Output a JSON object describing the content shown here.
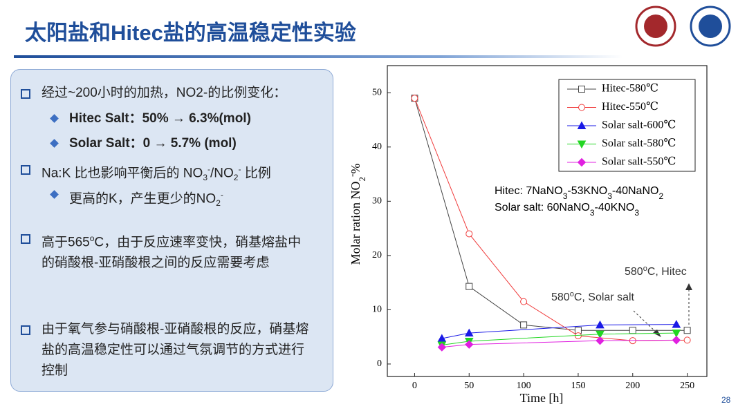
{
  "slide": {
    "title": "太阳盐和Hitec盐的高温稳定性实验",
    "page_number": "28",
    "bullets": [
      {
        "parts": [
          "经过~200小时的加热，NO2-的比例变化："
        ],
        "sub_bullets": [
          {
            "parts": [
              "Hitec Salt：50% → 6.3%(mol)"
            ]
          },
          {
            "parts": [
              "Solar Salt：0 → 5.7% (mol)"
            ]
          }
        ]
      },
      {
        "parts": [
          "Na:K 比也影响平衡后的 NO",
          "3",
          "-",
          "/NO",
          "2",
          "-",
          " 比例"
        ],
        "sub_bullets": [
          {
            "parts": [
              "更高的K，产生更少的NO",
              "2",
              "-"
            ]
          }
        ]
      },
      {
        "parts": [
          "高于565",
          "o",
          "C，由于反应速率变快，硝基熔盐中的硝酸根-亚硝酸根之间的反应需要考虑"
        ]
      },
      {
        "parts": [
          "由于氧气参与硝酸根-亚硝酸根的反应，硝基熔盐的高温稳定性可以通过气氛调节的方式进行控制"
        ]
      }
    ]
  },
  "chart_data": {
    "type": "line",
    "xlabel": "Time [h]",
    "ylabel_parts": [
      "Molar ration  NO",
      "2",
      "-",
      "%"
    ],
    "xlim": [
      -25,
      268
    ],
    "ylim": [
      -2.3,
      55
    ],
    "xticks": [
      0,
      50,
      100,
      150,
      200,
      250
    ],
    "yticks": [
      0,
      10,
      20,
      30,
      40,
      50
    ],
    "legend": "upper right",
    "series": [
      {
        "name": "Hitec-580℃",
        "color": "#444444",
        "marker": "square",
        "x": [
          0,
          50,
          100,
          150,
          200,
          250
        ],
        "values": [
          49,
          14.3,
          7.2,
          6.2,
          6.2,
          6.2
        ]
      },
      {
        "name": "Hitec-550℃",
        "color": "#f03c3c",
        "marker": "circle",
        "x": [
          0,
          50,
          100,
          150,
          200,
          250
        ],
        "values": [
          49,
          24,
          11.5,
          5.2,
          4.3,
          4.4
        ]
      },
      {
        "name": "Solar salt-600℃",
        "color": "#1a1ae6",
        "marker": "triangle",
        "x": [
          25,
          50,
          170,
          240
        ],
        "values": [
          4.7,
          5.7,
          7.2,
          7.3
        ]
      },
      {
        "name": "Solar salt-580℃",
        "color": "#22d622",
        "marker": "triangle-down",
        "x": [
          25,
          50,
          170,
          240
        ],
        "values": [
          3.5,
          4.2,
          5.5,
          5.7
        ]
      },
      {
        "name": "Solar salt-550℃",
        "color": "#e020e0",
        "marker": "diamond",
        "x": [
          25,
          50,
          170,
          240
        ],
        "values": [
          3.1,
          3.6,
          4.3,
          4.4
        ]
      }
    ],
    "annotations": [
      {
        "parts": [
          "Hitec: 7NaNO",
          "3",
          "-53KNO",
          "3",
          "-40NaNO",
          "2"
        ]
      },
      {
        "parts": [
          "Solar salt: 60NaNO",
          "3",
          "-40KNO",
          "3"
        ]
      },
      {
        "parts": [
          "580",
          "o",
          "C, Hitec"
        ]
      },
      {
        "parts": [
          "580",
          "o",
          "C, Solar salt"
        ]
      }
    ]
  }
}
